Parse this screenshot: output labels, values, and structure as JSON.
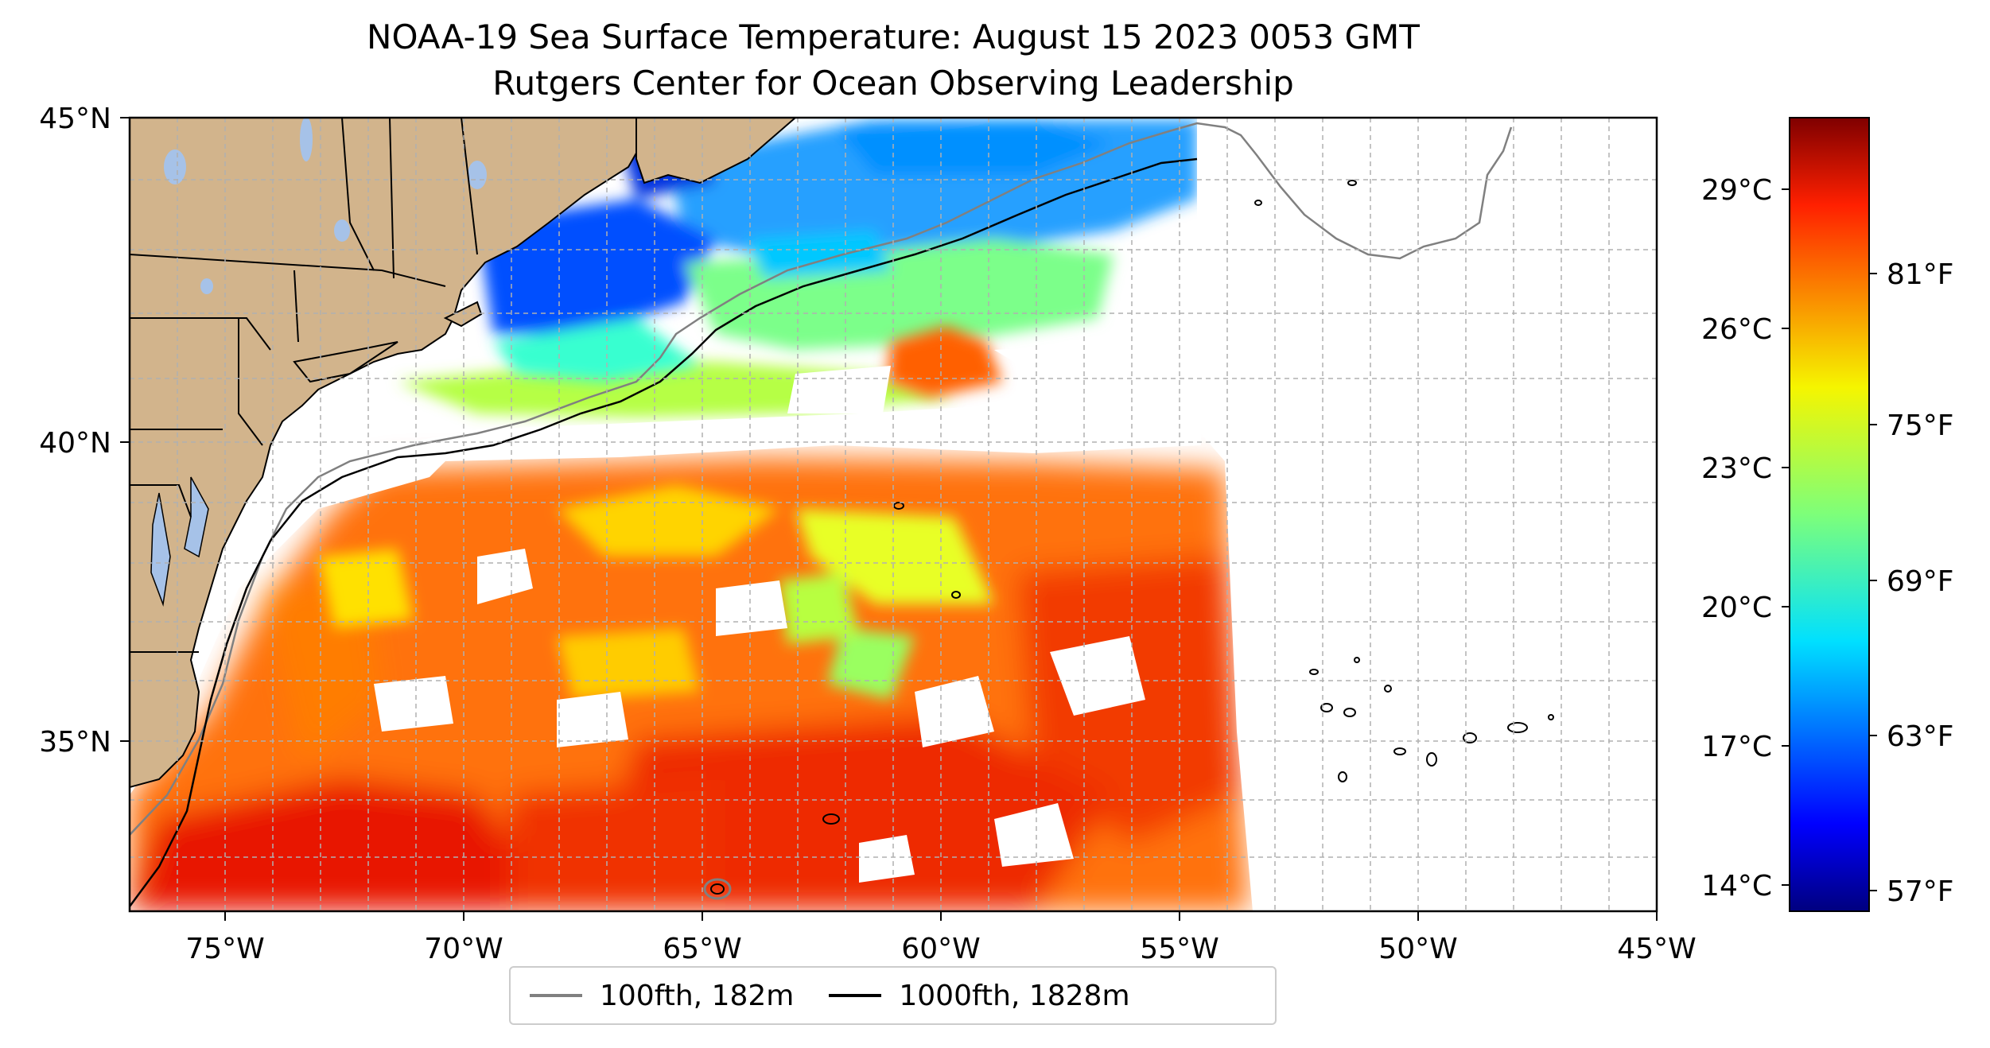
{
  "title": {
    "line1": "NOAA-19 Sea Surface Temperature: August 15 2023 0053 GMT",
    "line2": "Rutgers Center for Ocean Observing Leadership"
  },
  "map": {
    "lon_range": [
      -77,
      -45
    ],
    "lat_range": [
      32.2,
      45
    ],
    "lon_ticks": [
      "75°W",
      "70°W",
      "65°W",
      "60°W",
      "55°W",
      "50°W",
      "45°W"
    ],
    "lat_ticks": [
      "45°N",
      "40°N",
      "35°N"
    ],
    "land_color": "#d2b48c",
    "water_body_color": "#a6c2e8"
  },
  "colorbar": {
    "celsius_ticks": [
      "29°C",
      "26°C",
      "23°C",
      "20°C",
      "17°C",
      "14°C"
    ],
    "fahrenheit_ticks": [
      "81°F",
      "75°F",
      "69°F",
      "63°F",
      "57°F"
    ],
    "colormap": "jet"
  },
  "legend": {
    "items": [
      {
        "label": "100fth, 182m",
        "color": "#808080"
      },
      {
        "label": "1000fth, 1828m",
        "color": "#000000"
      }
    ]
  }
}
